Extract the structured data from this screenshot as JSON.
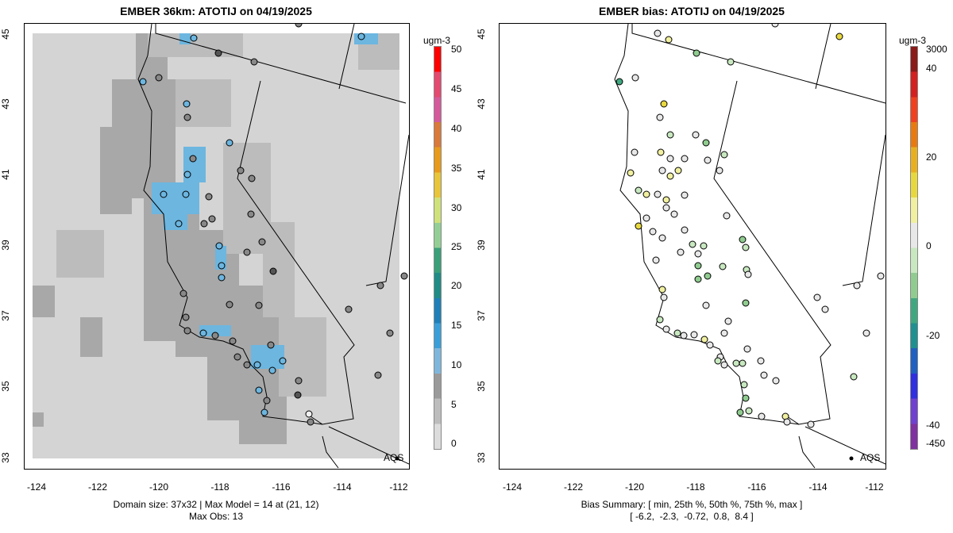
{
  "left_panel": {
    "title": "EMBER 36km: ATOTIJ on 04/19/2025",
    "x_ticks": [
      "-124",
      "-122",
      "-120",
      "-118",
      "-116",
      "-114",
      "-112"
    ],
    "y_ticks": [
      "45",
      "43",
      "41",
      "39",
      "37",
      "35",
      "33"
    ],
    "colorbar": {
      "unit": "ugm-3",
      "labels": [
        "50",
        "45",
        "40",
        "35",
        "30",
        "25",
        "20",
        "15",
        "10",
        "5",
        "0"
      ],
      "colors": [
        "#ff0000",
        "#e34a6f",
        "#d45a9b",
        "#d9793a",
        "#e89a1c",
        "#e8c53a",
        "#cfe17a",
        "#93cf94",
        "#3aa07a",
        "#218c86",
        "#1f7fb8",
        "#3a9fd9",
        "#7fb7dc",
        "#9a9a9a",
        "#bdbdbd",
        "#dcdcdc"
      ]
    },
    "caption_line1": "Domain size: 37x32 | Max Model = 14 at (21, 12)",
    "caption_line2": "Max Obs: 13",
    "site_label": "AQS"
  },
  "right_panel": {
    "title": "EMBER bias: ATOTIJ on 04/19/2025",
    "x_ticks": [
      "-124",
      "-122",
      "-120",
      "-118",
      "-116",
      "-114",
      "-112"
    ],
    "y_ticks": [
      "45",
      "43",
      "41",
      "39",
      "37",
      "35",
      "33"
    ],
    "colorbar": {
      "unit": "ugm-3",
      "labels": [
        "3000",
        "40",
        "20",
        "0",
        "-20",
        "-40",
        "-450"
      ],
      "colors": [
        "#8b1a1a",
        "#d42020",
        "#f04020",
        "#e87a10",
        "#e8b020",
        "#e8d840",
        "#f0f0a0",
        "#e8e8e8",
        "#c8e8c0",
        "#90cc90",
        "#40a880",
        "#209090",
        "#2060c0",
        "#3030e0",
        "#7040d0",
        "#8030a0"
      ]
    },
    "caption_line1": "Bias Summary: [ min, 25th %, 50th %, 75th %, max ]",
    "caption_line2": "[ -6.2,  -2.3,  -0.72,  0.8,  8.4 ]",
    "site_label": "AQS"
  }
}
